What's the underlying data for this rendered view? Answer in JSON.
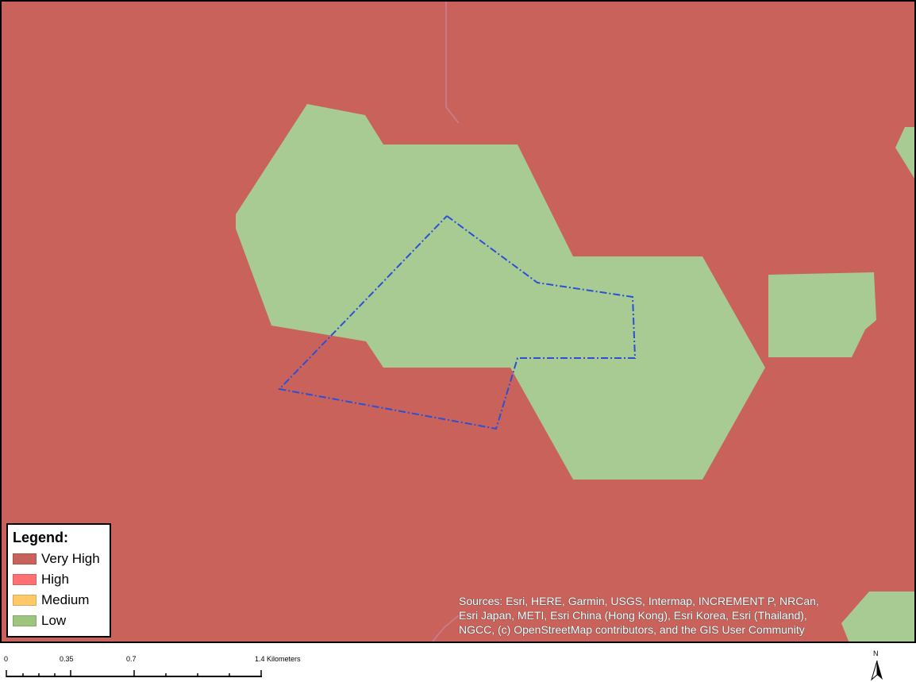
{
  "legend": {
    "title": "Legend:",
    "items": [
      {
        "label": "Very High",
        "color": "#c9625a"
      },
      {
        "label": "High",
        "color": "#ff7073"
      },
      {
        "label": "Medium",
        "color": "#ffc967"
      },
      {
        "label": "Low",
        "color": "#9ec57e"
      }
    ]
  },
  "map": {
    "background_color": "#c9625a",
    "low_zone_color": "#a8cb94",
    "boundary_color": "#2b4fd6"
  },
  "attribution": {
    "lines": [
      "Sources: Esri, HERE, Garmin, USGS, Intermap, INCREMENT P, NRCan,",
      "Esri Japan, METI, Esri China (Hong Kong), Esri Korea, Esri (Thailand),",
      "NGCC, (c) OpenStreetMap contributors, and the GIS User Community"
    ]
  },
  "scale_bar": {
    "ticks": [
      "0",
      "0.35",
      "0.7",
      "1.4 Kilometers"
    ]
  },
  "north_arrow": {
    "label": "N",
    "icon": "north-arrow-icon"
  }
}
